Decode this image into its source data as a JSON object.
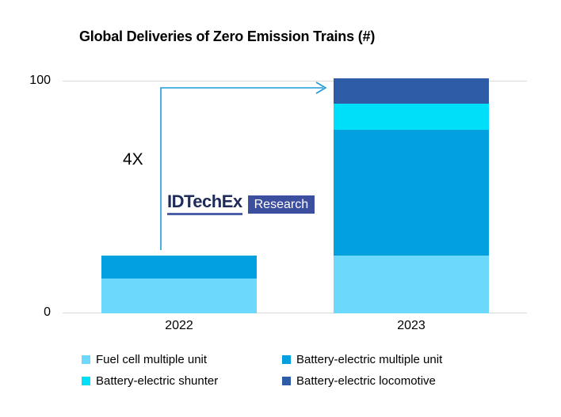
{
  "colors": {
    "arrow": "#1F9BD7",
    "gridline": "#D9D9D9",
    "logo_navy": "#3C4E9E",
    "logo_text": "#1E2A58",
    "logo_underline": "#4C5FA9"
  },
  "annotation": {
    "label": "4X"
  },
  "logo": {
    "name": "IDTechEx",
    "suffix": "Research"
  },
  "chart_data": {
    "type": "bar",
    "stacked": true,
    "title": "Global Deliveries of Zero Emission Trains (#)",
    "categories": [
      "2022",
      "2023"
    ],
    "series": [
      {
        "name": "Fuel cell multiple unit",
        "color": "#6CD9FC",
        "values": [
          15,
          25
        ]
      },
      {
        "name": "Battery-electric multiple unit",
        "color": "#03A0E0",
        "values": [
          10,
          54
        ]
      },
      {
        "name": "Battery-electric shunter",
        "color": "#00DFFA",
        "values": [
          0,
          11
        ]
      },
      {
        "name": "Battery-electric locomotive",
        "color": "#2E5CA6",
        "values": [
          0,
          11
        ]
      }
    ],
    "totals": [
      25,
      101
    ],
    "xlabel": "",
    "ylabel": "",
    "ylim": [
      0,
      100
    ],
    "yticks": [
      "0",
      "100"
    ],
    "grid": "horizontal gridlines at 0 and 100 only",
    "legend_position": "bottom, 2 columns x 2 rows",
    "annotation": "4X growth arrow from top of 2022 bar to top of 2023 bar"
  }
}
